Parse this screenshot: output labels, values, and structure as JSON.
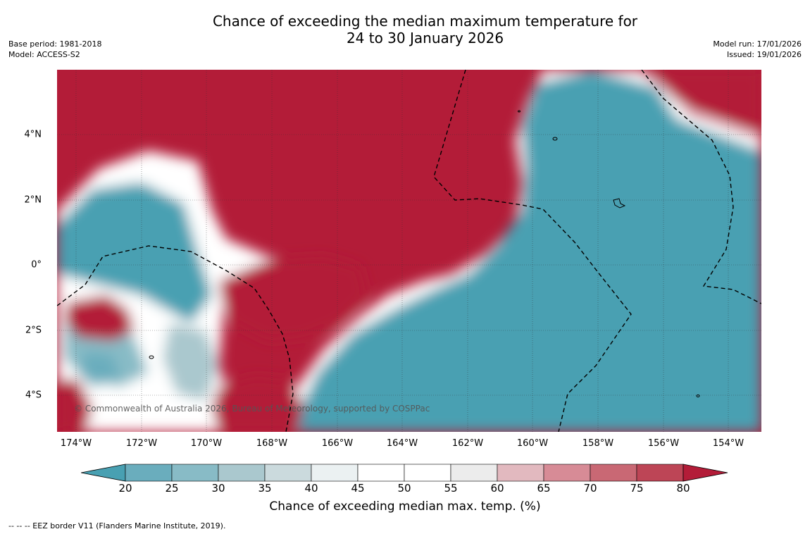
{
  "title_line1": "Chance of exceeding the median maximum temperature for",
  "title_line2": "24 to 30 January 2026",
  "meta_left": {
    "base_period": "Base period: 1981-2018",
    "model": "Model: ACCESS-S2"
  },
  "meta_right": {
    "model_run": "Model run: 17/01/2026",
    "issued": "Issued: 19/01/2026"
  },
  "copyright": "© Commonwealth of Australia 2026, Bureau of Meteorology, supported by COSPPac",
  "lat_labels": [
    "4°N",
    "2°N",
    "0°",
    "2°S",
    "4°S"
  ],
  "lon_labels": [
    "174°W",
    "172°W",
    "170°W",
    "168°W",
    "166°W",
    "164°W",
    "162°W",
    "160°W",
    "158°W",
    "156°W",
    "154°W"
  ],
  "colorbar": {
    "label": "Chance of exceeding median max. temp. (%)",
    "ticks": [
      "20",
      "25",
      "30",
      "35",
      "40",
      "45",
      "50",
      "55",
      "60",
      "65",
      "70",
      "75",
      "80"
    ],
    "colors": [
      "#48a0b2",
      "#6aadbd",
      "#88bbc6",
      "#aac8ce",
      "#cbdadd",
      "#ebf1f2",
      "#ffffff",
      "#ffffff",
      "#ececec",
      "#e2b9bf",
      "#d78b96",
      "#c96874",
      "#bd4556",
      "#b31c38"
    ],
    "low_color": "#48a0b2",
    "high_color": "#b31c38"
  },
  "footnote": "--  --  -- EEZ border V11 (Flanders Marine Institute, 2019)."
}
